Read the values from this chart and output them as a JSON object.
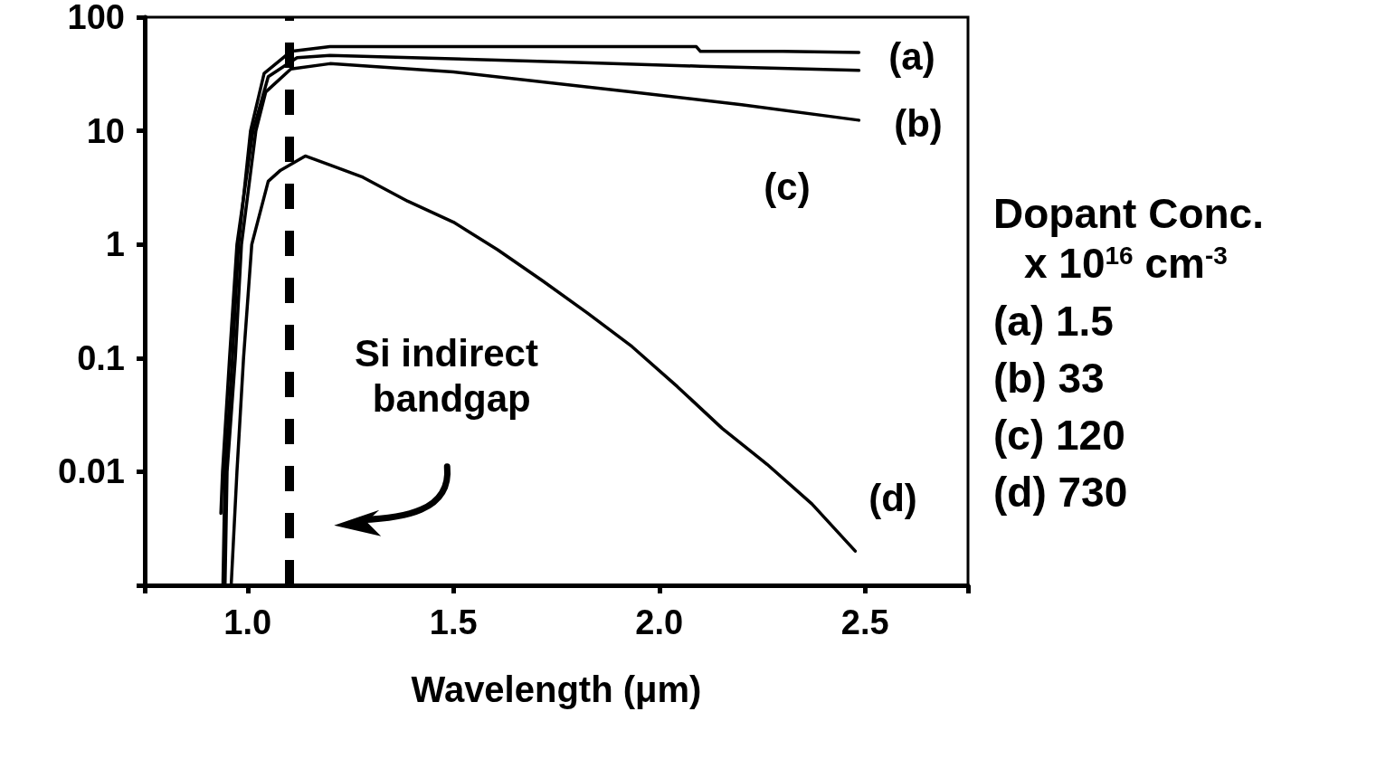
{
  "chart_data": {
    "type": "line",
    "xlabel": "Wavelength (μm)",
    "xlim": [
      0.75,
      2.75
    ],
    "xticks": [
      {
        "value": 0.75,
        "label": null
      },
      {
        "value": 1.0,
        "label": "1.0"
      },
      {
        "value": 1.5,
        "label": "1.5"
      },
      {
        "value": 2.0,
        "label": "2.0"
      },
      {
        "value": 2.5,
        "label": "2.5"
      },
      {
        "value": 2.75,
        "label": null
      }
    ],
    "ylim": [
      0.001,
      100
    ],
    "yticks": [
      {
        "value": 0.001,
        "label": null
      },
      0.01,
      0.1,
      1,
      10,
      100
    ],
    "log": "y",
    "grid": false,
    "marker": "none",
    "line_style": "solid",
    "series": [
      {
        "color": "#000000",
        "x": [
          0.94,
          0.945,
          0.963,
          0.978,
          1.007,
          1.04,
          1.105,
          1.2,
          1.5,
          1.8,
          2.09,
          2.1,
          2.3,
          2.485
        ],
        "values": [
          0.001,
          0.01,
          0.1,
          1,
          10,
          32,
          50,
          55,
          55,
          55,
          55,
          50,
          50,
          49
        ]
      },
      {
        "color": "#000000",
        "x": [
          0.935,
          0.939,
          0.956,
          0.974,
          1.013,
          1.05,
          1.12,
          1.2,
          1.5,
          1.8,
          2.1,
          2.485
        ],
        "values": [
          0.0043,
          0.01,
          0.1,
          1,
          10,
          30,
          44,
          46,
          43,
          40,
          37,
          34
        ]
      },
      {
        "color": "#000000",
        "x": [
          0.945,
          0.95,
          0.97,
          0.985,
          1.02,
          1.044,
          1.105,
          1.2,
          1.5,
          1.93,
          2.2,
          2.485
        ],
        "values": [
          0.001,
          0.01,
          0.1,
          1,
          10,
          22,
          35,
          39,
          33,
          22,
          17,
          12.4
        ]
      },
      {
        "color": "#000000",
        "x": [
          0.96,
          0.974,
          0.99,
          1.01,
          1.05,
          1.08,
          1.14,
          1.2,
          1.28,
          1.389,
          1.5,
          1.607,
          1.716,
          1.825,
          1.934,
          2.044,
          2.153,
          2.262,
          2.371,
          2.476
        ],
        "values": [
          0.001,
          0.01,
          0.1,
          1,
          3.6,
          4.5,
          6.0,
          5.0,
          3.9,
          2.4,
          1.57,
          0.9,
          0.48,
          0.25,
          0.126,
          0.056,
          0.024,
          0.0116,
          0.0052,
          0.002
        ]
      }
    ],
    "ref_lines": [
      {
        "axis": "x",
        "value": 1.1,
        "label": "Si indirect bandgap",
        "color": "#000000",
        "line_style": "dashed"
      }
    ],
    "annotations": [
      "(a)",
      "(b)",
      "(c)",
      "(d)",
      "Dopant Conc.",
      "x 10$^{16}$ cm$^{-3}$",
      "(a) 1.5",
      "(b) 33",
      "(c) 120",
      "(d) 730"
    ]
  }
}
